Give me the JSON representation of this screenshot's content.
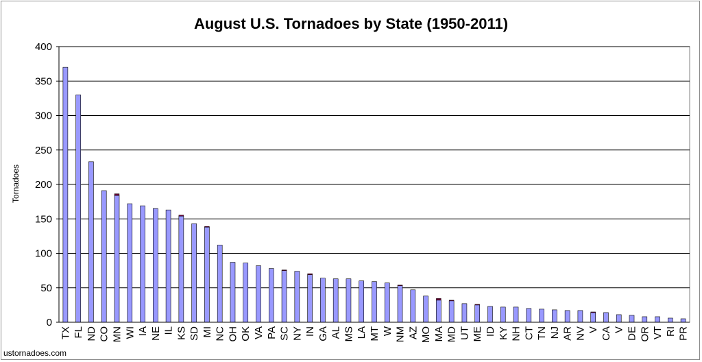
{
  "watermark": "ustornadoes.com",
  "colors": {
    "bar_fill": "#9999ff",
    "bar_cap": "#660033",
    "grid": "#000000",
    "frame": "#808080"
  },
  "chart_data": {
    "type": "bar",
    "title": "August U.S. Tornadoes by State (1950-2011)",
    "xlabel": "",
    "ylabel": "Tornadoes",
    "ylim": [
      0,
      400
    ],
    "yticks": [
      0,
      50,
      100,
      150,
      200,
      250,
      300,
      350,
      400
    ],
    "grid": true,
    "categories": [
      "TX",
      "FL",
      "ND",
      "CO",
      "MN",
      "WI",
      "IA",
      "NE",
      "IL",
      "KS",
      "SD",
      "MI",
      "NC",
      "OH",
      "OK",
      "VA",
      "PA",
      "SC",
      "NY",
      "IN",
      "GA",
      "AL",
      "MS",
      "LA",
      "MT",
      "W",
      "NM",
      "AZ",
      "MO",
      "MA",
      "MD",
      "UT",
      "ME",
      "ID",
      "KY",
      "NH",
      "CT",
      "TN",
      "NJ",
      "AR",
      "NV",
      "V",
      "CA",
      "V",
      "DE",
      "OR",
      "VT",
      "RI",
      "PR"
    ],
    "values": [
      370,
      330,
      233,
      191,
      184,
      172,
      169,
      165,
      163,
      154,
      143,
      138,
      112,
      87,
      86,
      82,
      78,
      75,
      74,
      69,
      64,
      63,
      63,
      60,
      59,
      57,
      53,
      47,
      38,
      32,
      31,
      27,
      25,
      23,
      22,
      22,
      20,
      19,
      18,
      17,
      17,
      14,
      14,
      11,
      10,
      8,
      8,
      6,
      5
    ],
    "caps": [
      0,
      0,
      0,
      0,
      2.5,
      0,
      0,
      0,
      0,
      1.5,
      0,
      1,
      0,
      0,
      0,
      0,
      0,
      1,
      0,
      1.5,
      0,
      0,
      0,
      0,
      0,
      0,
      1,
      0,
      0,
      2.5,
      1,
      0,
      1,
      0,
      0,
      0,
      0,
      0,
      0,
      0,
      0,
      1,
      0,
      0,
      0,
      0,
      0,
      0,
      0
    ]
  }
}
